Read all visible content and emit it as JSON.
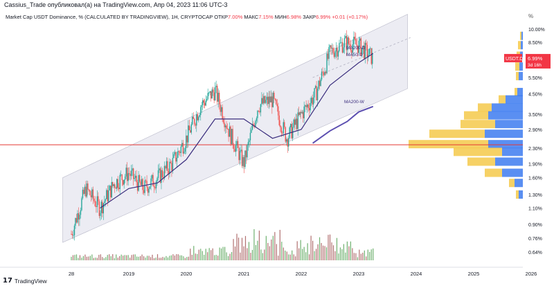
{
  "header": {
    "publisher_line": "Cassius_Trade опубликовал(а) на TradingView.com, Апр 04, 2023 11:06 UTC-3"
  },
  "legend": {
    "symbol": "Market Cap USDT Dominance, % (CALCULATED BY TRADINGVIEW), 1Н, CRYPTOCAP",
    "open_label": "ОТКР",
    "open_value": "7.00%",
    "high_label": "МАКС",
    "high_value": "7.15%",
    "low_label": "МИН",
    "low_value": "6.98%",
    "close_label": "ЗАКР",
    "close_value": "6.99%",
    "change": "+0.01 (+0.17%)"
  },
  "price_axis": {
    "unit": "%",
    "current_price_label": "6.99%",
    "current_symbol": "USDT.D",
    "countdown": "3d 16h"
  },
  "annotations": {
    "ma200d_top": "MA200-D",
    "ma200d_bottom": "MA50-D",
    "ma200w": "MA200-W"
  },
  "footer": {
    "brand_icon": "tradingview-logo-icon",
    "brand_text": "TradingView"
  },
  "colors": {
    "up": "#26a69a",
    "down": "#ef5350",
    "channel_fill": "#e4e4ee",
    "ma_line": "#3b2e7e",
    "ma_w": "#5c4fb0",
    "hline": "#e53935",
    "vp_yellow": "#f5c94a",
    "vp_blue": "#3d7bf0"
  },
  "chart_data": {
    "type": "candlestick",
    "title": "Market Cap USDT Dominance, % (CALCULATED BY TRADINGVIEW), 1Н, CRYPTOCAP",
    "ylabel": "%",
    "y_scale": "log",
    "y_ticks": [
      "10.00%",
      "8.50%",
      "6.99%",
      "5.50%",
      "4.50%",
      "3.50%",
      "2.90%",
      "2.30%",
      "1.90%",
      "1.60%",
      "1.30%",
      "1.10%",
      "0.90%",
      "0.76%",
      "0.64%"
    ],
    "y_tick_values": [
      10.0,
      8.5,
      6.99,
      5.5,
      4.5,
      3.5,
      2.9,
      2.3,
      1.9,
      1.6,
      1.3,
      1.1,
      0.9,
      0.76,
      0.64
    ],
    "x_ticks": [
      "28",
      "2019",
      "2020",
      "2021",
      "2022",
      "2023",
      "2024",
      "2025",
      "2026"
    ],
    "x_tick_values": [
      2018.0,
      2019.0,
      2020.0,
      2021.0,
      2022.0,
      2023.0,
      2024.0,
      2025.0,
      2026.0
    ],
    "price_series": {
      "x": [
        2018.0,
        2018.25,
        2018.5,
        2018.75,
        2019.0,
        2019.25,
        2019.5,
        2019.75,
        2020.0,
        2020.25,
        2020.5,
        2020.75,
        2021.0,
        2021.25,
        2021.5,
        2021.75,
        2022.0,
        2022.25,
        2022.5,
        2022.75,
        2023.0,
        2023.25
      ],
      "y": [
        0.8,
        1.4,
        1.1,
        1.5,
        1.7,
        1.4,
        1.6,
        1.9,
        2.6,
        3.9,
        4.7,
        2.8,
        1.9,
        3.9,
        4.2,
        2.6,
        3.5,
        4.5,
        7.5,
        8.5,
        8.2,
        6.99
      ]
    },
    "ma_series": [
      {
        "name": "MA200-D",
        "x": [
          2018.5,
          2019.0,
          2019.5,
          2020.0,
          2020.5,
          2021.0,
          2021.5,
          2022.0,
          2022.5,
          2023.0,
          2023.25
        ],
        "y": [
          1.1,
          1.4,
          1.5,
          2.0,
          3.3,
          3.3,
          2.6,
          2.9,
          5.0,
          6.6,
          7.4
        ]
      },
      {
        "name": "MA200-W",
        "x": [
          2022.2,
          2022.5,
          2022.8,
          2023.0,
          2023.25
        ],
        "y": [
          2.45,
          2.85,
          3.2,
          3.6,
          3.85
        ]
      }
    ],
    "horizontal_line": {
      "value": 2.4
    },
    "legend": [
      "MA200-D",
      "MA50-D",
      "MA200-W"
    ]
  }
}
